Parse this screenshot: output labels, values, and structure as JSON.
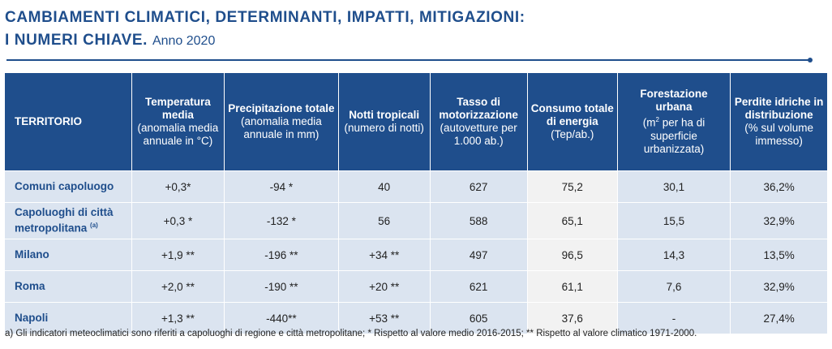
{
  "title": {
    "line1": "CAMBIAMENTI CLIMATICI, DETERMINANTI, IMPATTI, MITIGAZIONI:",
    "line2": "I NUMERI CHIAVE.",
    "sub": "Anno 2020"
  },
  "table": {
    "headers": [
      {
        "bold": "TERRITORIO",
        "sub": ""
      },
      {
        "bold": "Temperatura media",
        "sub": "(anomalia media annuale in °C)"
      },
      {
        "bold": "Precipitazione totale",
        "sub": "(anomalia media annuale in mm)"
      },
      {
        "bold": "Notti tropicali",
        "sub": "(numero di notti)"
      },
      {
        "bold": "Tasso di motorizzazione",
        "sub": "(autovetture per 1.000 ab.)"
      },
      {
        "bold": "Consumo totale di energia",
        "sub": "(Tep/ab.)"
      },
      {
        "bold": "Forestazione urbana",
        "sub_pre": "(m",
        "sub_sup": "2",
        "sub_post": " per ha di superficie urbanizzata)"
      },
      {
        "bold": "Perdite idriche in distribuzione",
        "sub": "(% sul volume immesso)"
      }
    ],
    "rows": [
      {
        "name": "Comuni capoluogo",
        "note": "",
        "values": [
          "+0,3*",
          "-94 *",
          "40",
          "627",
          "75,2",
          "30,1",
          "36,2%"
        ]
      },
      {
        "name": "Capoluoghi di città metropolitana",
        "note": "(a)",
        "values": [
          "+0,3 *",
          "-132 *",
          "56",
          "588",
          "65,1",
          "15,5",
          "32,9%"
        ]
      },
      {
        "name": "Milano",
        "note": "",
        "values": [
          "+1,9 **",
          "-196 **",
          "+34 **",
          "497",
          "96,5",
          "14,3",
          "13,5%"
        ]
      },
      {
        "name": "Roma",
        "note": "",
        "values": [
          "+2,0 **",
          "-190 **",
          "+20 **",
          "621",
          "61,1",
          "7,6",
          "32,9%"
        ]
      },
      {
        "name": "Napoli",
        "note": "",
        "values": [
          "+1,3 **",
          "-440**",
          "+53 **",
          "605",
          "37,6",
          "-",
          "27,4%"
        ]
      }
    ]
  },
  "footnote": "a) Gli indicatori meteoclimatici sono riferiti a capoluoghi di regione e città metropolitane; * Rispetto al valore medio 2016-2015; ** Rispetto al valore climatico 1971-2000.",
  "colors": {
    "accent": "#1f4e8c",
    "row_bg": "#dbe4f0",
    "highlight_col": "#f2f2f2"
  }
}
